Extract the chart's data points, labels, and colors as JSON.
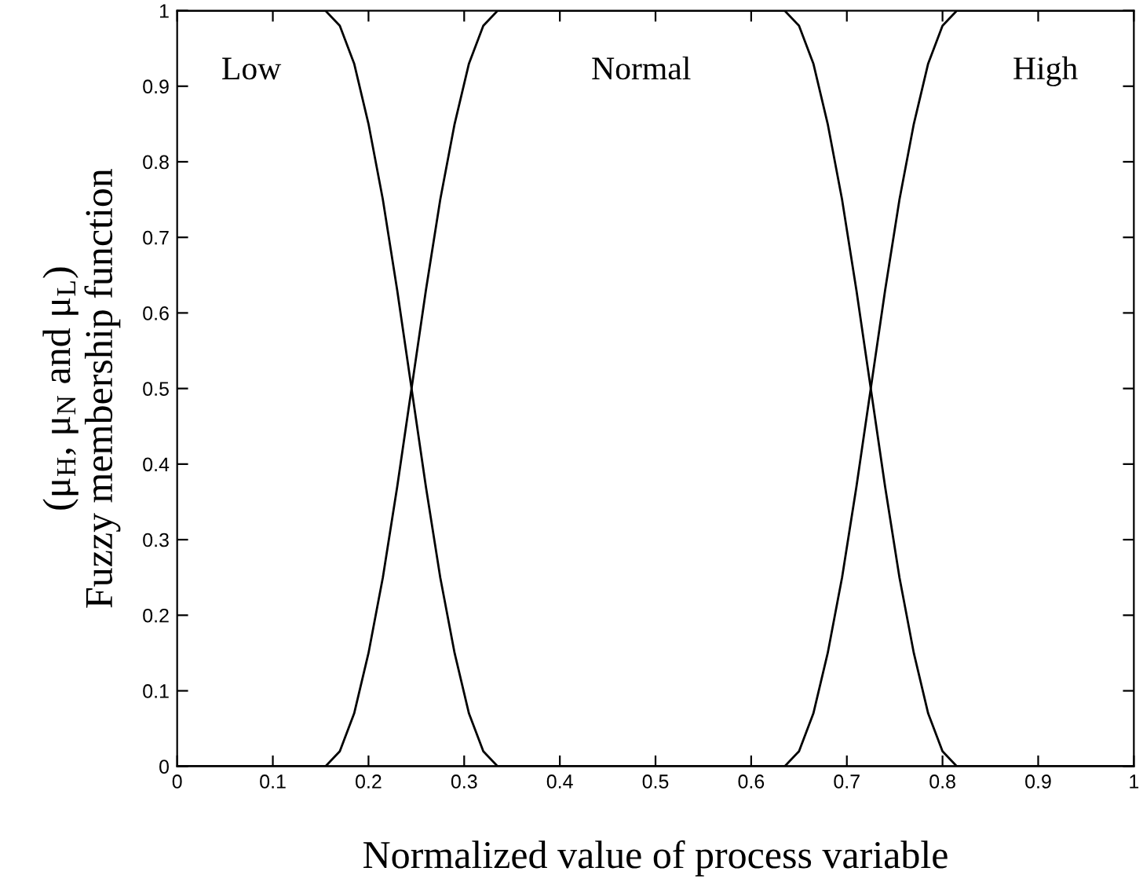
{
  "chart_data": {
    "type": "line",
    "xlabel": "Normalized value of process variable",
    "ylabel": "(μ$_{H}$, μ$_{N}$ and μ$_{L}$)\nFuzzy membership function",
    "xlim": [
      0,
      1
    ],
    "ylim": [
      0,
      1
    ],
    "xticks": [
      0,
      0.1,
      0.2,
      0.3,
      0.4,
      0.5,
      0.6,
      0.7,
      0.8,
      0.9,
      1
    ],
    "yticks": [
      0,
      0.1,
      0.2,
      0.3,
      0.4,
      0.5,
      0.6,
      0.7,
      0.8,
      0.9,
      1
    ],
    "annotations": [
      "Low",
      "Normal",
      "High"
    ],
    "grid": false,
    "legend": false,
    "marker": "none",
    "line_style": "solid",
    "series": [
      {
        "color": "#000000",
        "x": [
          0,
          0.155,
          0.17,
          0.185,
          0.2,
          0.215,
          0.23,
          0.245,
          0.26,
          0.275,
          0.29,
          0.305,
          0.32,
          0.335,
          1
        ],
        "values": [
          1,
          1,
          0.98,
          0.93,
          0.85,
          0.75,
          0.63,
          0.5,
          0.37,
          0.25,
          0.15,
          0.07,
          0.02,
          0,
          0
        ]
      },
      {
        "color": "#000000",
        "x": [
          0,
          0.155,
          0.17,
          0.185,
          0.2,
          0.215,
          0.23,
          0.245,
          0.26,
          0.275,
          0.29,
          0.305,
          0.32,
          0.335,
          0.635,
          0.65,
          0.665,
          0.68,
          0.695,
          0.71,
          0.725,
          0.74,
          0.755,
          0.77,
          0.785,
          0.8,
          0.815,
          1
        ],
        "values": [
          0,
          0,
          0.02,
          0.07,
          0.15,
          0.25,
          0.37,
          0.5,
          0.63,
          0.75,
          0.85,
          0.93,
          0.98,
          1,
          1,
          0.98,
          0.93,
          0.85,
          0.75,
          0.63,
          0.5,
          0.37,
          0.25,
          0.15,
          0.07,
          0.02,
          0,
          0
        ]
      },
      {
        "color": "#000000",
        "x": [
          0,
          0.635,
          0.65,
          0.665,
          0.68,
          0.695,
          0.71,
          0.725,
          0.74,
          0.755,
          0.77,
          0.785,
          0.8,
          0.815,
          1
        ],
        "values": [
          0,
          0,
          0.02,
          0.07,
          0.15,
          0.25,
          0.37,
          0.5,
          0.63,
          0.75,
          0.85,
          0.93,
          0.98,
          1,
          1
        ]
      }
    ]
  }
}
